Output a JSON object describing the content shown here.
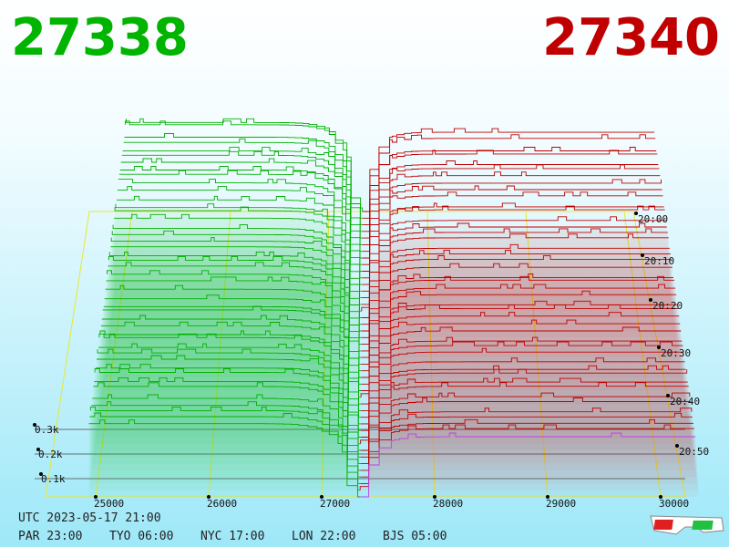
{
  "header": {
    "bid": "27338",
    "ask": "27340"
  },
  "axes": {
    "volume_labels": [
      "0.3k",
      "0.2k",
      "0.1k"
    ],
    "price_labels": [
      "25000",
      "26000",
      "27000",
      "28000",
      "29000",
      "30000"
    ],
    "time_labels": [
      "20:00",
      "20:10",
      "20:20",
      "20:30",
      "20:40",
      "20:50"
    ]
  },
  "footer": {
    "utc": "UTC 2023-05-17 21:00",
    "zones": [
      "PAR 23:00",
      "TYO 06:00",
      "NYC 17:00",
      "LON 22:00",
      "BJS 05:00"
    ]
  }
}
